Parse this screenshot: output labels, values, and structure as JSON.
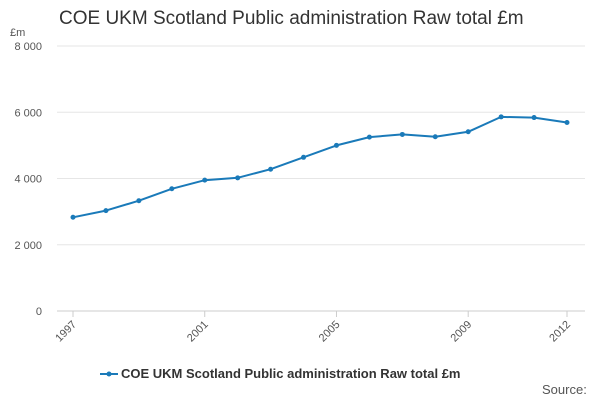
{
  "chart_data": {
    "type": "line",
    "title": "COE UKM Scotland Public administration Raw total £m",
    "ylabel": "£m",
    "xlabel": "",
    "x": [
      1997,
      1998,
      1999,
      2000,
      2001,
      2002,
      2003,
      2004,
      2005,
      2006,
      2007,
      2008,
      2009,
      2010,
      2011,
      2012
    ],
    "series": [
      {
        "name": "COE UKM Scotland Public administration Raw total £m",
        "color": "#1a7ab9",
        "values": [
          2830,
          3030,
          3330,
          3690,
          3950,
          4020,
          4280,
          4640,
          5000,
          5250,
          5330,
          5260,
          5410,
          5860,
          5840,
          5690
        ]
      }
    ],
    "ylim": [
      0,
      8000
    ],
    "yticks": [
      0,
      2000,
      4000,
      6000,
      8000
    ],
    "ytick_labels": [
      "0",
      "2 000",
      "4 000",
      "6 000",
      "8 000"
    ],
    "xticks": [
      1997,
      2001,
      2005,
      2009,
      2012
    ],
    "xtick_labels": [
      "1997",
      "2001",
      "2005",
      "2009",
      "2012"
    ],
    "grid": true,
    "legend_position": "bottom",
    "source_label": "Source:"
  }
}
